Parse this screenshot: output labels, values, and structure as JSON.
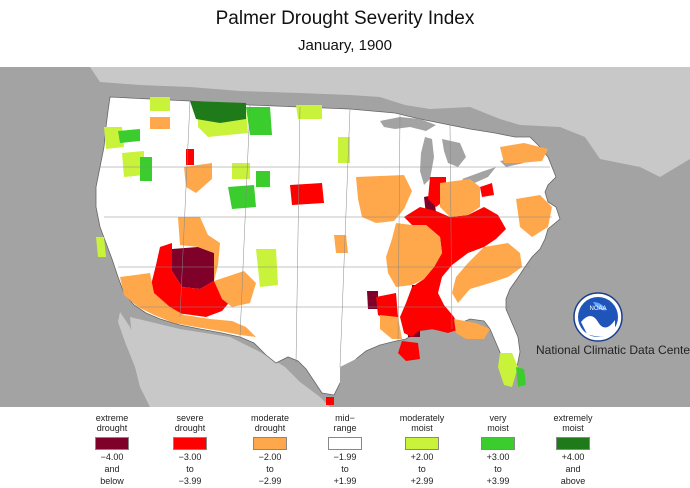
{
  "title": "Palmer Drought Severity Index",
  "subtitle": "January, 1900",
  "credit": "National Climatic Data Center",
  "logo": {
    "icon": "noaa-logo-icon",
    "text": "NOAA"
  },
  "colors": {
    "background_land": "#c8c8c8",
    "water": "#a3a3a3",
    "extreme_drought": "#7f0028",
    "severe_drought": "#ff0000",
    "moderate_drought": "#ffa84b",
    "mid_range": "#ffffff",
    "moderately_moist": "#c9f23b",
    "very_moist": "#3bcc2e",
    "extremely_moist": "#1f7a1a"
  },
  "legend": [
    {
      "label_top": "extreme",
      "label_bottom": "drought",
      "color": "#7f0028",
      "range_1": "−4.00",
      "range_2": "and",
      "range_3": "below"
    },
    {
      "label_top": "severe",
      "label_bottom": "drought",
      "color": "#ff0000",
      "range_1": "−3.00",
      "range_2": "to",
      "range_3": "−3.99"
    },
    {
      "label_top": "moderate",
      "label_bottom": "drought",
      "color": "#ffa84b",
      "range_1": "−2.00",
      "range_2": "to",
      "range_3": "−2.99"
    },
    {
      "label_top": "mid−",
      "label_bottom": "range",
      "color": "#ffffff",
      "range_1": "−1.99",
      "range_2": "to",
      "range_3": "+1.99"
    },
    {
      "label_top": "moderately",
      "label_bottom": "moist",
      "color": "#c9f23b",
      "range_1": "+2.00",
      "range_2": "to",
      "range_3": "+2.99"
    },
    {
      "label_top": "very",
      "label_bottom": "moist",
      "color": "#3bcc2e",
      "range_1": "+3.00",
      "range_2": "to",
      "range_3": "+3.99"
    },
    {
      "label_top": "extremely",
      "label_bottom": "moist",
      "color": "#1f7a1a",
      "range_1": "+4.00",
      "range_2": "and",
      "range_3": "above"
    }
  ]
}
